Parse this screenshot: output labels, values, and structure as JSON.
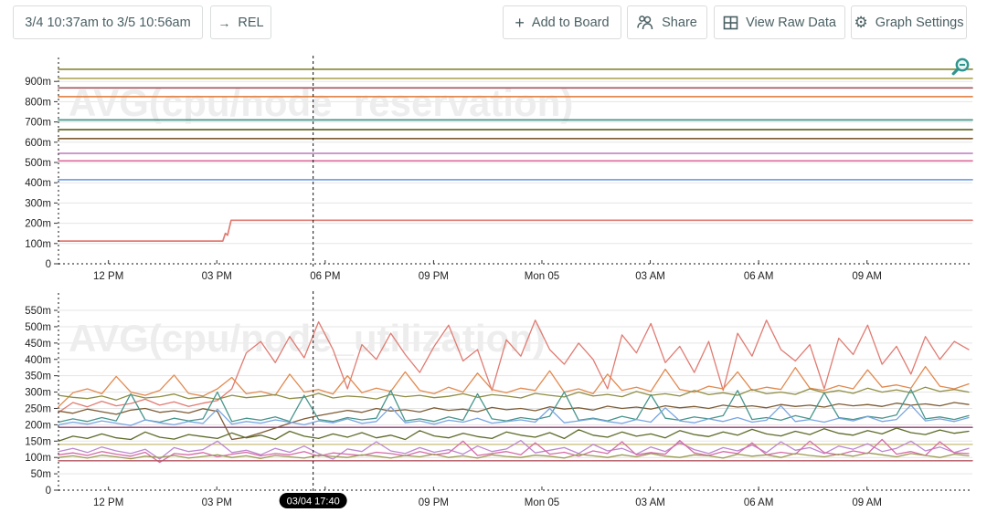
{
  "header": {
    "time_range": "3/4 10:37am to 3/5 10:56am",
    "rel": "REL",
    "add_to_board": "Add to Board",
    "share": "Share",
    "view_raw_data": "View Raw Data",
    "graph_settings": "Graph Settings",
    "icons": {
      "plus": "+",
      "arrow_right": "→",
      "gear": "⚙"
    }
  },
  "marker": {
    "t": 7.05,
    "label": "03/04 17:40"
  },
  "x_axis": {
    "t_max": 25.3,
    "ticks": [
      {
        "t": 1.383,
        "label": "12 PM"
      },
      {
        "t": 4.383,
        "label": "03 PM"
      },
      {
        "t": 7.383,
        "label": "06 PM"
      },
      {
        "t": 10.383,
        "label": "09 PM"
      },
      {
        "t": 13.383,
        "label": "Mon 05"
      },
      {
        "t": 16.383,
        "label": "03 AM"
      },
      {
        "t": 19.383,
        "label": "06 AM"
      },
      {
        "t": 22.383,
        "label": "09 AM"
      }
    ]
  },
  "chart_data": [
    {
      "type": "line",
      "title": "AVG(cpu/node_reservation)",
      "watermark": "AVG(cpu/node_reservation)",
      "ylabel": "",
      "xlabel": "",
      "y_max": 1000,
      "y_ticks": [
        {
          "v": 0,
          "label": "0"
        },
        {
          "v": 100,
          "label": "100m"
        },
        {
          "v": 200,
          "label": "200m"
        },
        {
          "v": 300,
          "label": "300m"
        },
        {
          "v": 400,
          "label": "400m"
        },
        {
          "v": 500,
          "label": "500m"
        },
        {
          "v": 600,
          "label": "600m"
        },
        {
          "v": 700,
          "label": "700m"
        },
        {
          "v": 800,
          "label": "800m"
        },
        {
          "v": 900,
          "label": "900m"
        }
      ],
      "has_magnifier": true,
      "show_marker_pill": false,
      "stroke_width": 1.7,
      "series": [
        {
          "id": "olive",
          "color": "#8f8e44",
          "points": [
            [
              0,
              960
            ],
            [
              25.3,
              960
            ]
          ]
        },
        {
          "id": "khaki",
          "color": "#b4ad63",
          "points": [
            [
              0,
              915
            ],
            [
              25.3,
              915
            ]
          ]
        },
        {
          "id": "maroon",
          "color": "#a2555b",
          "points": [
            [
              0,
              868
            ],
            [
              25.3,
              868
            ]
          ]
        },
        {
          "id": "orange",
          "color": "#e2894e",
          "points": [
            [
              0,
              825
            ],
            [
              25.3,
              825
            ]
          ]
        },
        {
          "id": "teal",
          "color": "#47958b",
          "points": [
            [
              0,
              710
            ],
            [
              25.3,
              710
            ]
          ]
        },
        {
          "id": "dark-olive",
          "color": "#6a6a2b",
          "points": [
            [
              0,
              662
            ],
            [
              25.3,
              662
            ]
          ]
        },
        {
          "id": "brown",
          "color": "#7e5c35",
          "points": [
            [
              0,
              618
            ],
            [
              25.3,
              618
            ]
          ]
        },
        {
          "id": "orchid",
          "color": "#c68bc8",
          "points": [
            [
              0,
              545
            ],
            [
              25.3,
              545
            ]
          ]
        },
        {
          "id": "pink",
          "color": "#df73a4",
          "points": [
            [
              0,
              508
            ],
            [
              25.3,
              508
            ]
          ]
        },
        {
          "id": "blue",
          "color": "#79a5e2",
          "points": [
            [
              0,
              415
            ],
            [
              25.3,
              415
            ]
          ]
        },
        {
          "id": "salmon",
          "color": "#e07b72",
          "points": [
            [
              0,
              112
            ],
            [
              4.55,
              112
            ],
            [
              4.62,
              150
            ],
            [
              4.68,
              141
            ],
            [
              4.78,
              215
            ],
            [
              25.3,
              215
            ]
          ]
        }
      ]
    },
    {
      "type": "line",
      "title": "AVG(cpu/node_utilization)",
      "watermark": "AVG(cpu/node_utilization)",
      "ylabel": "",
      "xlabel": "",
      "y_max": 592,
      "y_ticks": [
        {
          "v": 0,
          "label": "0"
        },
        {
          "v": 50,
          "label": "50m"
        },
        {
          "v": 100,
          "label": "100m"
        },
        {
          "v": 150,
          "label": "150m"
        },
        {
          "v": 200,
          "label": "200m"
        },
        {
          "v": 250,
          "label": "250m"
        },
        {
          "v": 300,
          "label": "300m"
        },
        {
          "v": 350,
          "label": "350m"
        },
        {
          "v": 400,
          "label": "400m"
        },
        {
          "v": 450,
          "label": "450m"
        },
        {
          "v": 500,
          "label": "500m"
        },
        {
          "v": 550,
          "label": "550m"
        }
      ],
      "has_magnifier": false,
      "show_marker_pill": true,
      "stroke_width": 1.3,
      "dt": 0.4,
      "series": [
        {
          "id": "salmon",
          "color": "#e07b72",
          "values": [
            238,
            268,
            255,
            272,
            258,
            265,
            278,
            260,
            270,
            256,
            266,
            274,
            310,
            420,
            455,
            390,
            470,
            405,
            515,
            430,
            310,
            445,
            400,
            480,
            415,
            360,
            440,
            505,
            395,
            430,
            305,
            460,
            410,
            520,
            430,
            385,
            450,
            400,
            310,
            475,
            420,
            510,
            390,
            440,
            360,
            455,
            305,
            480,
            410,
            520,
            430,
            395,
            445,
            310,
            465,
            415,
            505,
            385,
            440,
            355,
            470,
            400,
            455,
            430
          ]
        },
        {
          "id": "orange",
          "color": "#e2894e",
          "values": [
            255,
            298,
            310,
            295,
            348,
            300,
            290,
            305,
            352,
            296,
            288,
            310,
            345,
            295,
            302,
            290,
            355,
            300,
            308,
            294,
            350,
            298,
            312,
            302,
            362,
            305,
            295,
            315,
            300,
            358,
            308,
            298,
            312,
            305,
            365,
            300,
            310,
            295,
            355,
            305,
            315,
            302,
            370,
            308,
            300,
            318,
            310,
            362,
            305,
            315,
            308,
            375,
            312,
            305,
            320,
            310,
            368,
            315,
            322,
            312,
            378,
            318,
            310,
            325
          ]
        },
        {
          "id": "khaki-olive",
          "color": "#8f8e44",
          "values": [
            290,
            284,
            280,
            288,
            276,
            292,
            282,
            286,
            294,
            280,
            285,
            278,
            290,
            283,
            287,
            292,
            280,
            284,
            296,
            282,
            288,
            285,
            279,
            293,
            286,
            290,
            283,
            287,
            295,
            284,
            292,
            288,
            282,
            296,
            290,
            285,
            300,
            288,
            293,
            286,
            302,
            290,
            295,
            288,
            305,
            292,
            298,
            290,
            308,
            295,
            300,
            293,
            310,
            298,
            305,
            296,
            312,
            300,
            307,
            298,
            315,
            302,
            308,
            300
          ]
        },
        {
          "id": "brown",
          "color": "#7e5c35",
          "values": [
            242,
            235,
            248,
            240,
            232,
            245,
            250,
            238,
            243,
            236,
            249,
            241,
            155,
            162,
            175,
            190,
            205,
            218,
            228,
            236,
            244,
            238,
            250,
            242,
            246,
            239,
            252,
            244,
            248,
            240,
            253,
            246,
            250,
            243,
            255,
            248,
            252,
            245,
            257,
            250,
            254,
            248,
            258,
            252,
            256,
            250,
            260,
            254,
            258,
            252,
            262,
            256,
            260,
            254,
            264,
            258,
            262,
            256,
            266,
            260,
            264,
            258,
            268,
            262
          ]
        },
        {
          "id": "teal",
          "color": "#47958b",
          "values": [
            208,
            218,
            210,
            222,
            212,
            295,
            215,
            208,
            220,
            212,
            218,
            300,
            210,
            220,
            214,
            224,
            210,
            290,
            216,
            210,
            222,
            215,
            220,
            305,
            212,
            218,
            210,
            224,
            214,
            295,
            218,
            212,
            222,
            216,
            226,
            300,
            214,
            220,
            212,
            226,
            216,
            292,
            220,
            214,
            224,
            218,
            228,
            305,
            216,
            222,
            214,
            228,
            218,
            298,
            222,
            216,
            226,
            220,
            230,
            308,
            218,
            224,
            216,
            228
          ]
        },
        {
          "id": "blue",
          "color": "#79a5e2",
          "values": [
            200,
            208,
            202,
            212,
            205,
            198,
            215,
            206,
            200,
            210,
            204,
            248,
            202,
            210,
            205,
            215,
            208,
            200,
            212,
            206,
            218,
            204,
            210,
            255,
            206,
            212,
            202,
            214,
            208,
            220,
            205,
            210,
            215,
            208,
            250,
            206,
            212,
            218,
            210,
            204,
            216,
            208,
            252,
            212,
            206,
            218,
            210,
            222,
            208,
            214,
            258,
            210,
            216,
            208,
            220,
            212,
            225,
            210,
            216,
            260,
            212,
            218,
            210,
            222
          ]
        },
        {
          "id": "dark-magenta",
          "color": "#8e3e72",
          "points": [
            [
              0,
              192
            ],
            [
              25.3,
              192
            ]
          ]
        },
        {
          "id": "dark-olive-green",
          "color": "#5d6b28",
          "values": [
            150,
            165,
            158,
            172,
            160,
            155,
            178,
            162,
            156,
            170,
            164,
            158,
            175,
            160,
            168,
            155,
            180,
            165,
            158,
            172,
            162,
            176,
            160,
            168,
            155,
            182,
            166,
            160,
            174,
            164,
            158,
            178,
            168,
            162,
            176,
            158,
            185,
            168,
            162,
            178,
            165,
            172,
            160,
            182,
            170,
            164,
            178,
            168,
            186,
            172,
            166,
            180,
            170,
            188,
            174,
            168,
            182,
            172,
            190,
            176,
            170,
            184,
            174,
            180
          ]
        },
        {
          "id": "tan-flat",
          "color": "#c5bc77",
          "points": [
            [
              0,
              140
            ],
            [
              25.3,
              140
            ]
          ]
        },
        {
          "id": "orchid",
          "color": "#bd87cf",
          "values": [
            118,
            128,
            115,
            132,
            120,
            112,
            125,
            95,
            130,
            118,
            124,
            150,
            115,
            122,
            108,
            128,
            116,
            135,
            112,
            95,
            126,
            118,
            148,
            120,
            112,
            130,
            116,
            124,
            110,
            135,
            118,
            126,
            152,
            114,
            122,
            130,
            112,
            140,
            120,
            128,
            110,
            132,
            118,
            145,
            124,
            112,
            130,
            120,
            138,
            115,
            148,
            122,
            130,
            112,
            135,
            125,
            142,
            118,
            128,
            150,
            120,
            132,
            115,
            128
          ]
        },
        {
          "id": "pink",
          "color": "#d66ca7",
          "values": [
            108,
            114,
            106,
            118,
            110,
            104,
            116,
            85,
            112,
            108,
            115,
            102,
            110,
            116,
            105,
            112,
            108,
            118,
            104,
            114,
            110,
            106,
            116,
            112,
            105,
            118,
            108,
            114,
            150,
            106,
            112,
            118,
            108,
            145,
            110,
            116,
            104,
            120,
            112,
            148,
            108,
            115,
            110,
            152,
            114,
            106,
            118,
            112,
            145,
            108,
            116,
            110,
            150,
            115,
            108,
            120,
            112,
            155,
            110,
            118,
            106,
            148,
            114,
            112
          ]
        },
        {
          "id": "olive-2",
          "color": "#9b9a52",
          "values": [
            100,
            105,
            98,
            107,
            102,
            96,
            104,
            100,
            106,
            98,
            103,
            108,
            100,
            105,
            97,
            106,
            102,
            98,
            107,
            103,
            100,
            108,
            104,
            98,
            106,
            102,
            110,
            100,
            105,
            98,
            108,
            103,
            100,
            107,
            104,
            98,
            110,
            105,
            100,
            108,
            102,
            112,
            104,
            100,
            108,
            105,
            98,
            110,
            104,
            108,
            100,
            112,
            106,
            102,
            110,
            104,
            114,
            108,
            102,
            112,
            106,
            100,
            110,
            105
          ]
        },
        {
          "id": "dark-red",
          "color": "#b1555f",
          "points": [
            [
              0,
              90
            ],
            [
              25.3,
              90
            ]
          ]
        }
      ]
    }
  ]
}
